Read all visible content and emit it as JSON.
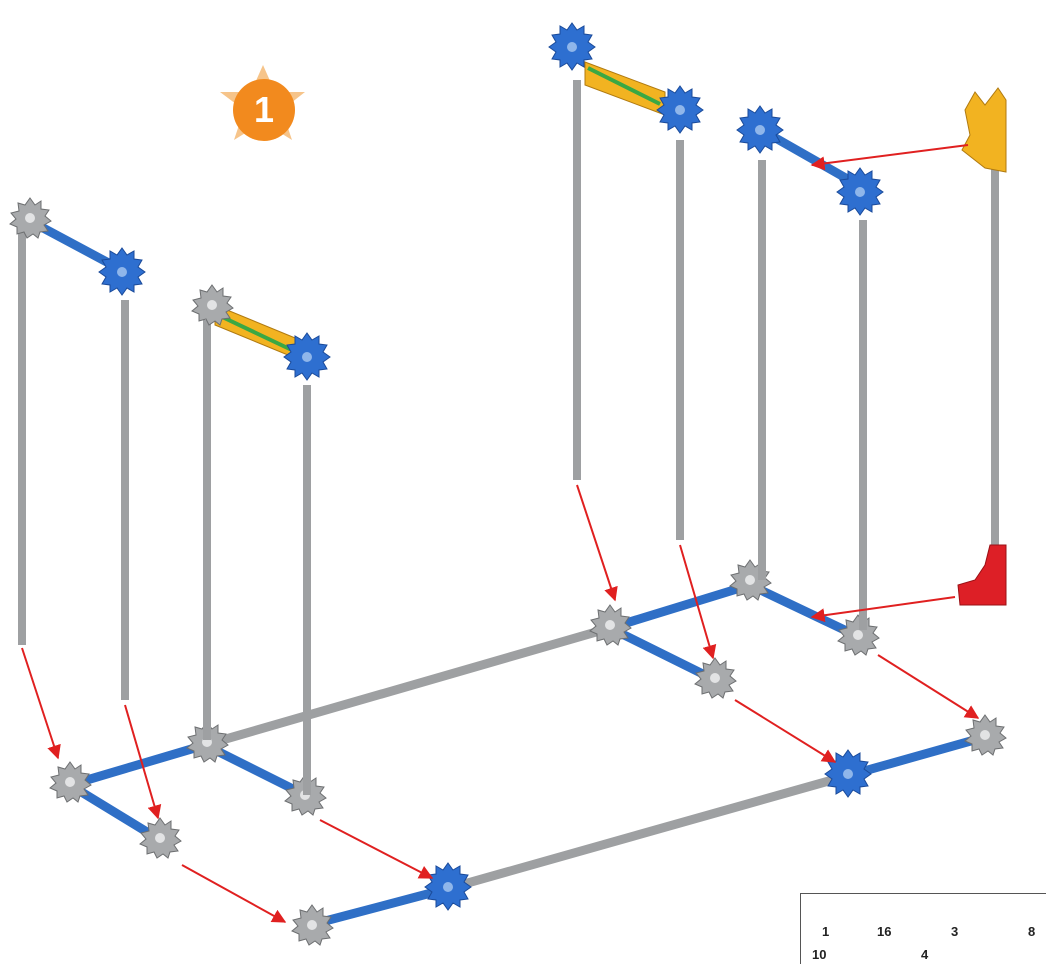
{
  "step": {
    "number": "1"
  },
  "legend": {
    "items": [
      {
        "qty": "1",
        "part": "red-corner-connector-icon"
      },
      {
        "qty": "16",
        "part": "gray-connector-icon"
      },
      {
        "qty": "3",
        "part": "yellow-connector-icon"
      },
      {
        "qty": "8",
        "part": "blue-connector-icon"
      },
      {
        "qty": "10",
        "part": "blue-rod-icon"
      },
      {
        "qty": "4",
        "part": "green-rod-icon"
      }
    ]
  },
  "colors": {
    "gray_rod": "#9ea0a2",
    "blue_rod": "#2f6fc6",
    "blue_part": "#2e6fd0",
    "gray_part": "#a8aaac",
    "yellow_part": "#f2b321",
    "red_part": "#dd1f26",
    "green_part": "#3aa844",
    "arrow": "#e02020",
    "badge": "#f28a1e",
    "star": "#f6c48a"
  }
}
